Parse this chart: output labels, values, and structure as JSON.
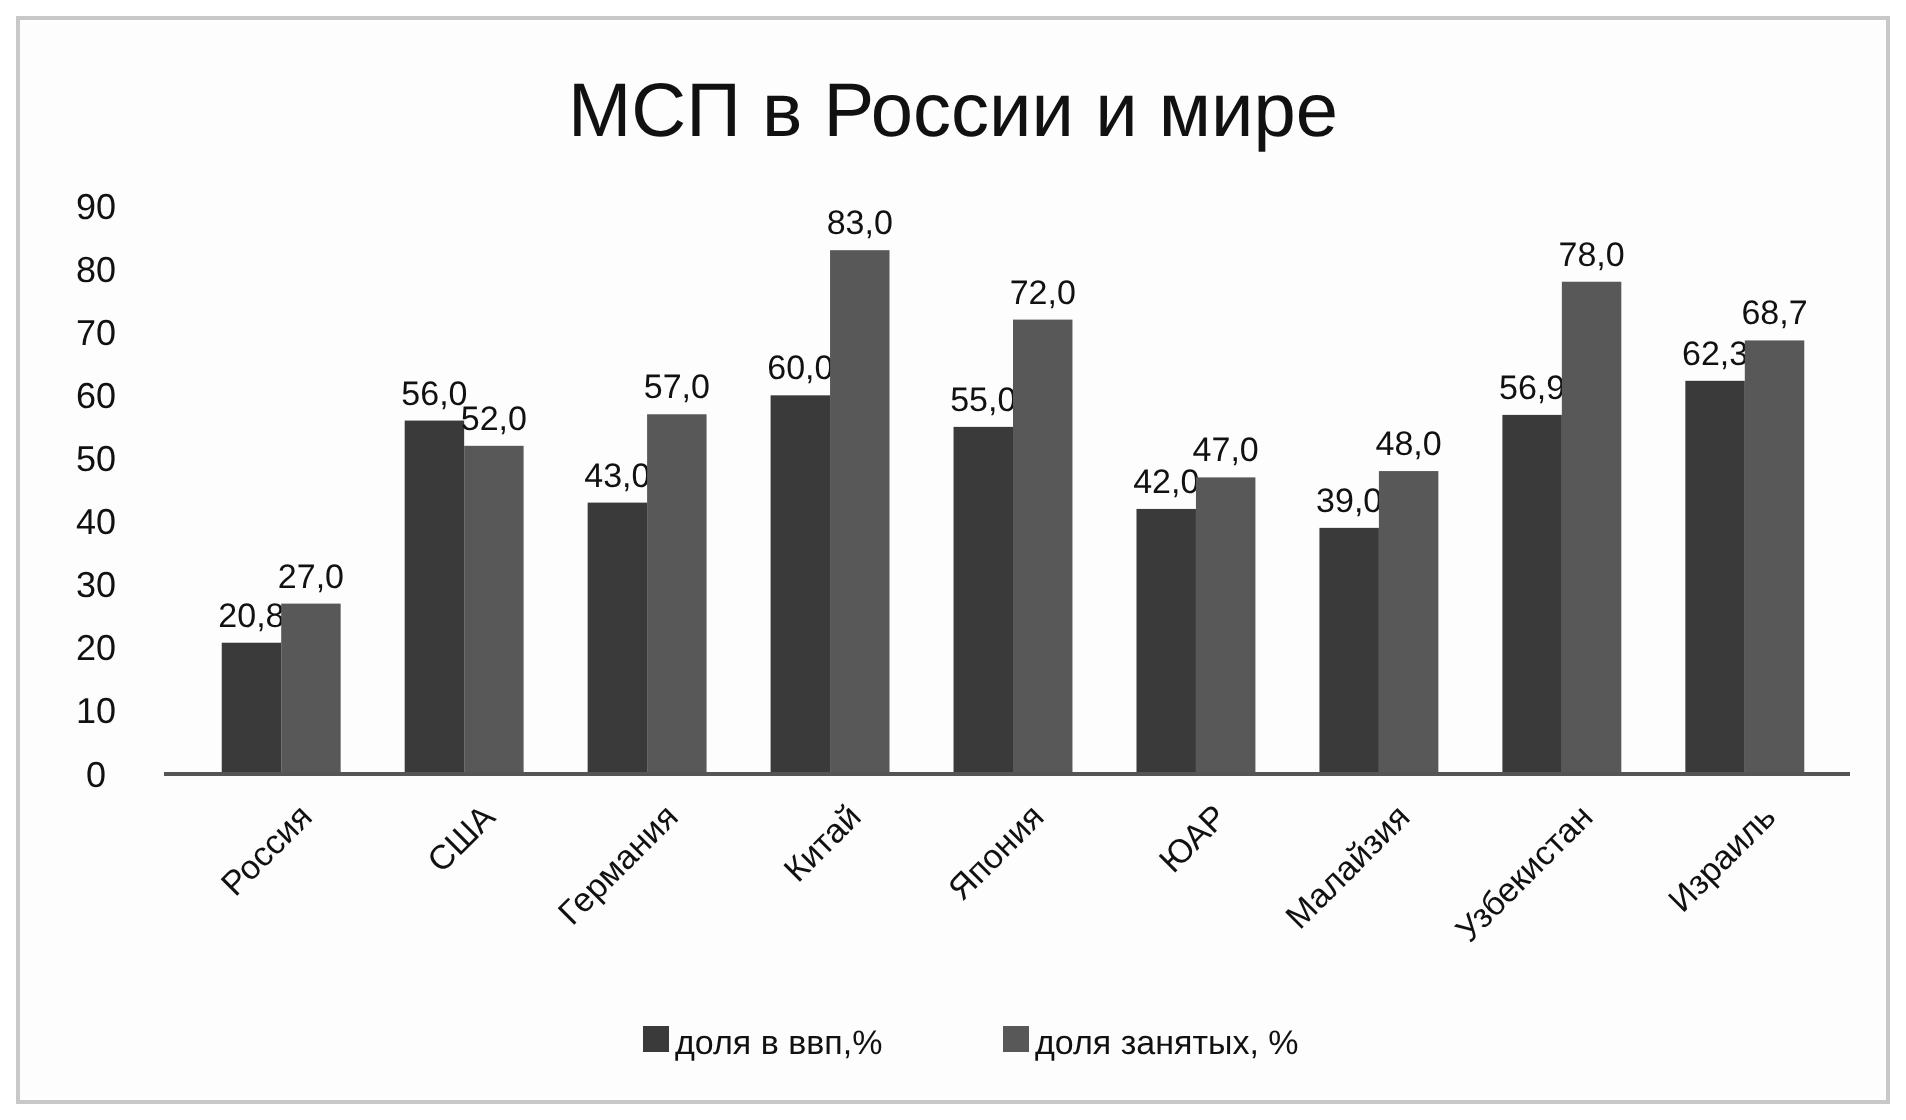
{
  "chart_data": {
    "type": "bar",
    "title": "МСП  в России и мире",
    "categories": [
      "Россия",
      "США",
      "Германия",
      "Китай",
      "Япония",
      "ЮАР",
      "Малайзия",
      "Узбекистан",
      "Израиль"
    ],
    "series": [
      {
        "name": "доля в ввп,%",
        "color": "#3a3a3a",
        "values": [
          20.8,
          56.0,
          43.0,
          60.0,
          55.0,
          42.0,
          39.0,
          56.9,
          62.3
        ],
        "value_labels": [
          "20,8",
          "56,0",
          "43,0",
          "60,0",
          "55,0",
          "42,0",
          "39,0",
          "56,9",
          "62,3"
        ]
      },
      {
        "name": "доля занятых, %",
        "color": "#585858",
        "values": [
          27.0,
          52.0,
          57.0,
          83.0,
          72.0,
          47.0,
          48.0,
          78.0,
          68.7
        ],
        "value_labels": [
          "27,0",
          "52,0",
          "57,0",
          "83,0",
          "72,0",
          "47,0",
          "48,0",
          "78,0",
          "68,7"
        ]
      }
    ],
    "ylim": [
      0,
      90
    ],
    "yticks": [
      0,
      10,
      20,
      30,
      40,
      50,
      60,
      70,
      80,
      90
    ],
    "grid": false,
    "legend": "bottom"
  }
}
